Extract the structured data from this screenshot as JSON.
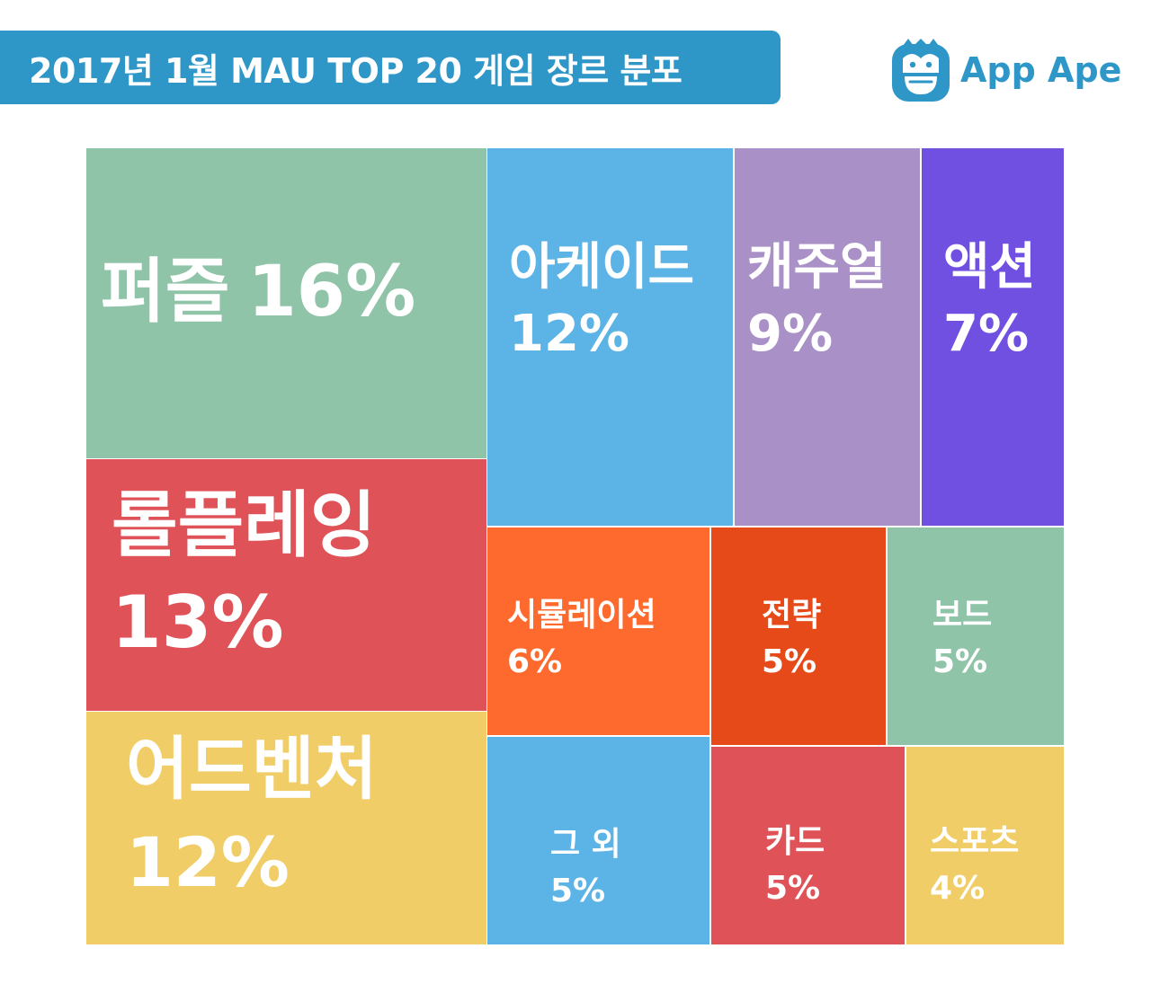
{
  "title": "2017년 1월 MAU TOP 20 게임 장르 분포",
  "brand": {
    "name": "App Ape",
    "logo_icon": "ape-face-icon",
    "color": "#2e97c8"
  },
  "chart_data": {
    "type": "treemap",
    "title": "2017년 1월 MAU TOP 20 게임 장르 분포",
    "categories": [
      "퍼즐",
      "롤플레잉",
      "어드벤처",
      "아케이드",
      "캐주얼",
      "액션",
      "시뮬레이션",
      "전략",
      "보드",
      "그 외",
      "카드",
      "스포츠"
    ],
    "values": [
      16,
      13,
      12,
      12,
      9,
      7,
      6,
      5,
      5,
      5,
      5,
      4
    ],
    "value_labels": [
      "16%",
      "13%",
      "12%",
      "12%",
      "9%",
      "7%",
      "6%",
      "5%",
      "5%",
      "5%",
      "5%",
      "4%"
    ],
    "colors": [
      "#8fc4a8",
      "#df5257",
      "#f0cd66",
      "#5cb3e6",
      "#a991c7",
      "#7050e0",
      "#fe6a2d",
      "#e64a19",
      "#8fc4a8",
      "#5cb3e6",
      "#df5257",
      "#f0cd66"
    ]
  }
}
